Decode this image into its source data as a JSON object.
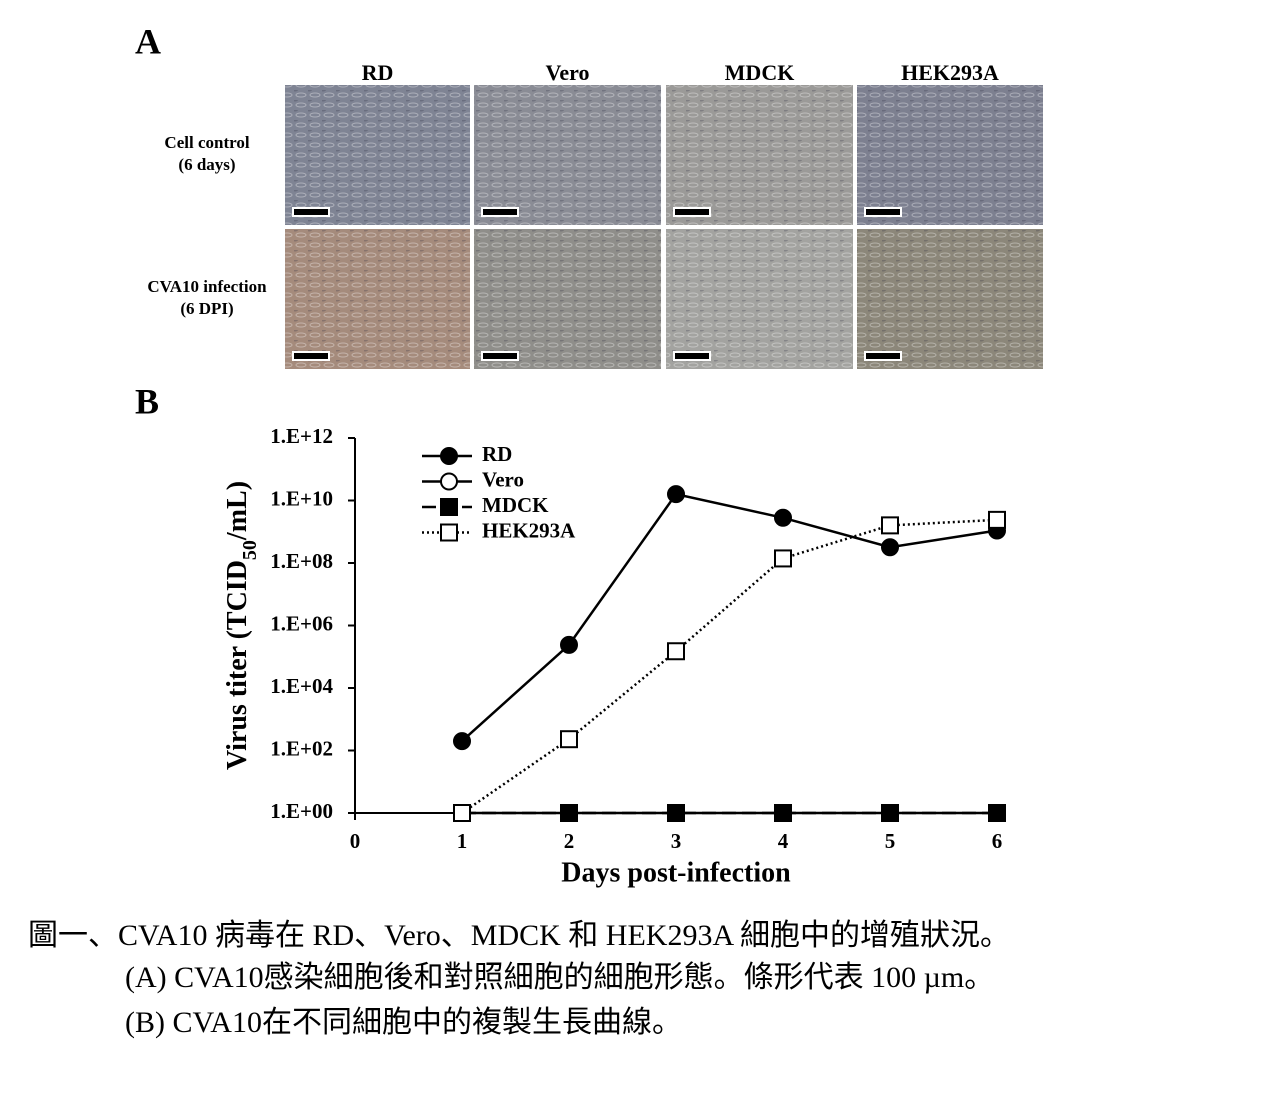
{
  "panel_a": {
    "letter": "A",
    "columns": [
      "RD",
      "Vero",
      "MDCK",
      "HEK293A"
    ],
    "rows": [
      [
        "Cell control",
        "(6 days)"
      ],
      [
        "CVA10 infection",
        "(6 DPI)"
      ]
    ]
  },
  "chart_data": {
    "type": "line",
    "letter": "B",
    "ylabel": [
      "Virus titer (TCID",
      "50",
      "/mL)"
    ],
    "xlabel": "Days post-infection",
    "x": [
      1,
      2,
      3,
      4,
      5,
      6
    ],
    "xlim": [
      0,
      6
    ],
    "xticks": [
      0,
      1,
      2,
      3,
      4,
      5,
      6
    ],
    "ylim": [
      1,
      1000000000000
    ],
    "log_scale": true,
    "yticks": [
      {
        "value": 1,
        "label": "1.E+00"
      },
      {
        "value": 100,
        "label": "1.E+02"
      },
      {
        "value": 10000,
        "label": "1.E+04"
      },
      {
        "value": 1000000,
        "label": "1.E+06"
      },
      {
        "value": 100000000,
        "label": "1.E+08"
      },
      {
        "value": 10000000000,
        "label": "1.E+10"
      },
      {
        "value": 1000000000000,
        "label": "1.E+12"
      }
    ],
    "legend": "upper left",
    "series": [
      {
        "name": "RD",
        "color": "#000000",
        "marker": "circle",
        "filled": true,
        "dash": "solid",
        "values": [
          200,
          240000,
          16000000000,
          2800000000,
          320000000,
          1100000000
        ]
      },
      {
        "name": "Vero",
        "color": "#000000",
        "marker": "circle",
        "filled": false,
        "dash": "solid",
        "values": [
          1,
          1,
          1,
          1,
          1,
          1
        ]
      },
      {
        "name": "MDCK",
        "color": "#000000",
        "marker": "square",
        "filled": true,
        "dash": "dashed",
        "values": [
          1,
          1,
          1,
          1,
          1,
          1
        ]
      },
      {
        "name": "HEK293A",
        "color": "#000000",
        "marker": "square",
        "filled": false,
        "dash": "dotted",
        "values": [
          1,
          230,
          150000,
          140000000,
          1600000000,
          2400000000
        ]
      }
    ]
  },
  "caption": [
    "圖一、CVA10 病毒在 RD、Vero、MDCK 和 HEK293A 細胞中的增殖狀況。",
    "(A) CVA10感染細胞後和對照細胞的細胞形態。條形代表 100 µm。",
    "(B) CVA10在不同細胞中的複製生長曲線。"
  ]
}
